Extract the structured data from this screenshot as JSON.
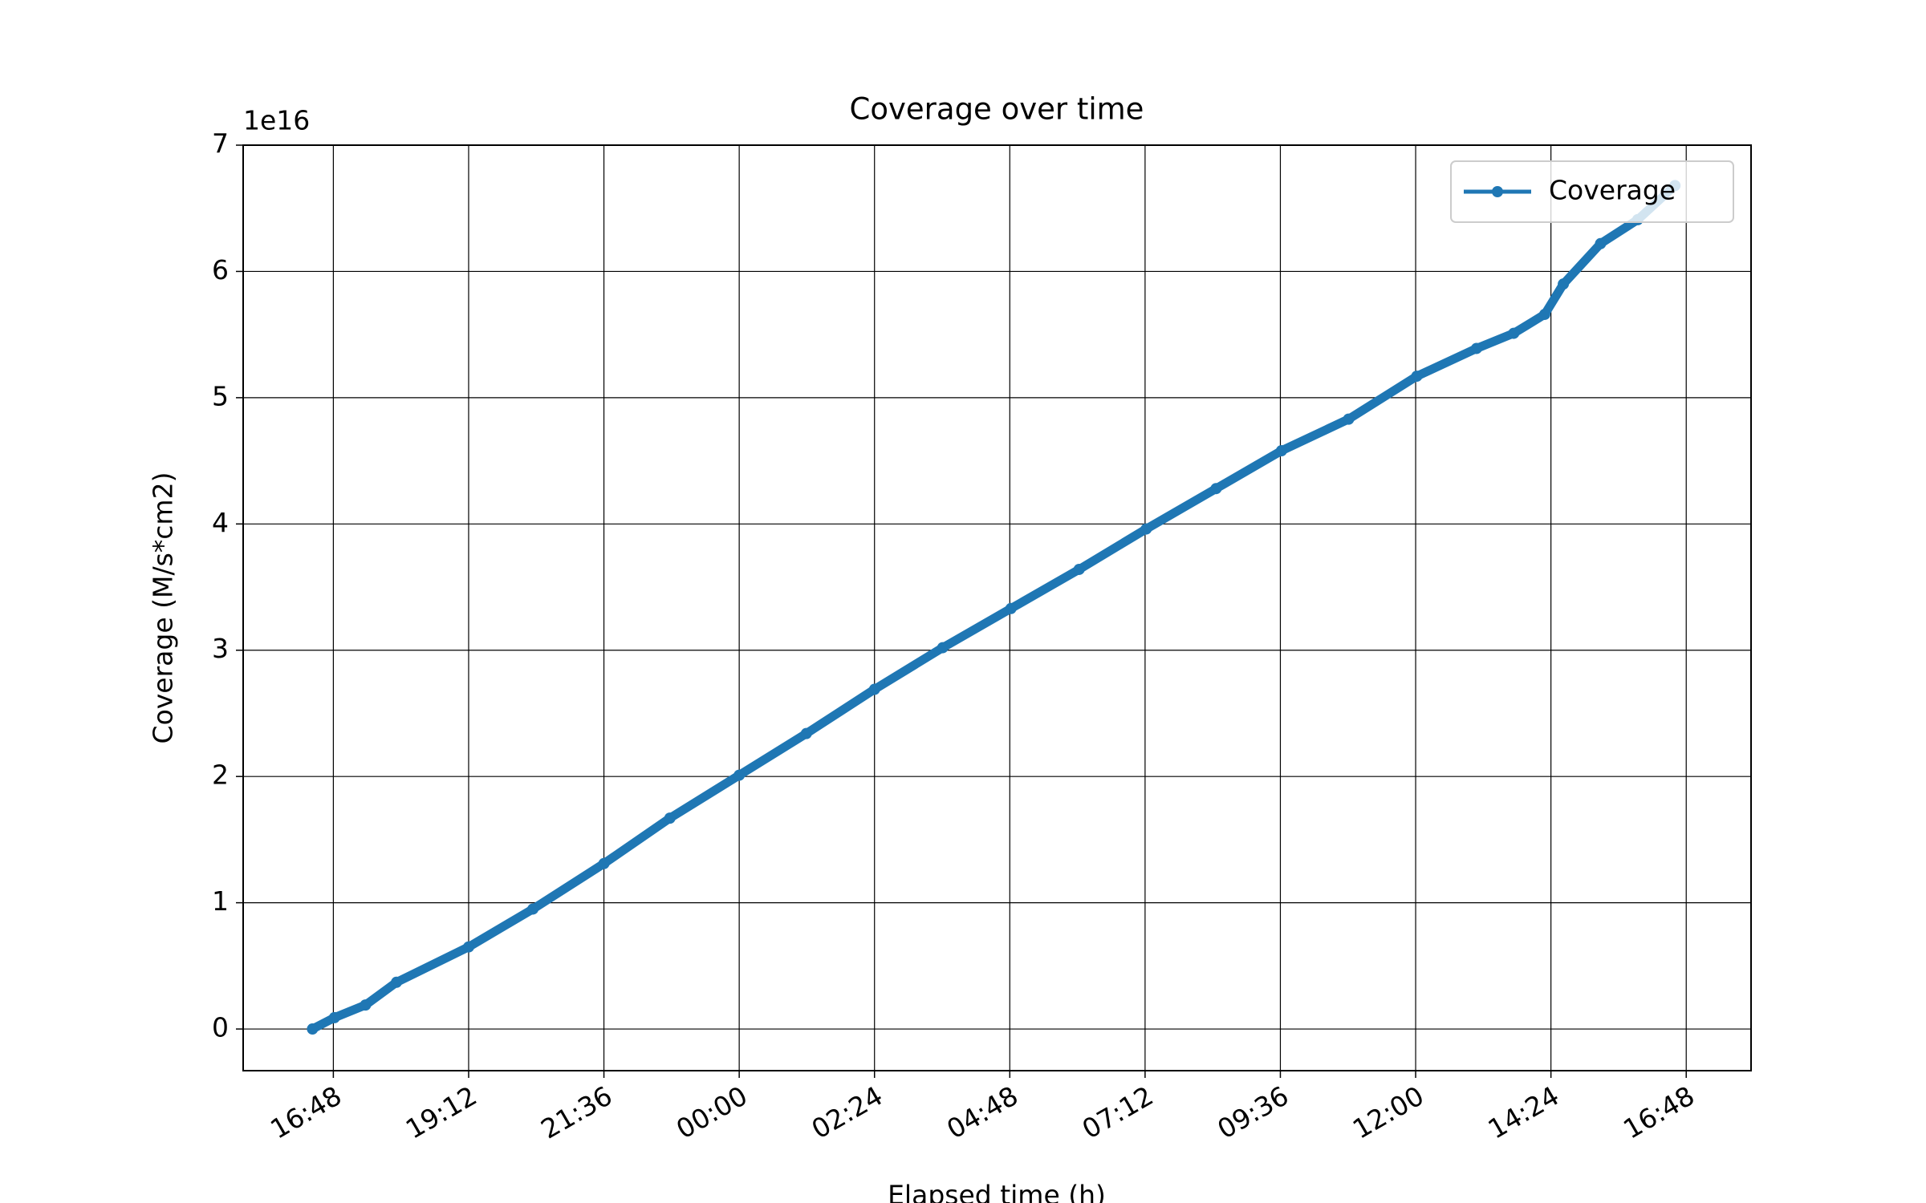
{
  "chart_data": {
    "type": "line",
    "title": "Coverage over time",
    "x_label": "Elapsed time (h)",
    "y_label": "Coverage (M/s*cm2)",
    "y_offset_label": "1e16",
    "x": [
      -0.37,
      0.02,
      0.57,
      1.12,
      2.4,
      3.54,
      4.8,
      5.97,
      7.2,
      8.39,
      9.6,
      10.81,
      12.02,
      13.23,
      14.42,
      15.66,
      16.82,
      18.01,
      19.22,
      20.28,
      20.94,
      21.49,
      21.82,
      22.48,
      23.14,
      23.8
    ],
    "series": [
      {
        "name": "Coverage",
        "color": "#1f77b4",
        "values": [
          0,
          0.09,
          0.19,
          0.37,
          0.65,
          0.95,
          1.31,
          1.67,
          2.01,
          2.34,
          2.69,
          3.02,
          3.33,
          3.64,
          3.96,
          4.28,
          4.58,
          4.83,
          5.17,
          5.39,
          5.51,
          5.66,
          5.9,
          6.22,
          6.41,
          6.68
        ]
      }
    ],
    "xlim": [
      -1.6,
      25.15
    ],
    "ylim": [
      -0.33,
      7
    ],
    "xticks": [
      {
        "value": 0,
        "label": "16:48"
      },
      {
        "value": 2.4,
        "label": "19:12"
      },
      {
        "value": 4.8,
        "label": "21:36"
      },
      {
        "value": 7.2,
        "label": "00:00"
      },
      {
        "value": 9.6,
        "label": "02:24"
      },
      {
        "value": 12,
        "label": "04:48"
      },
      {
        "value": 14.4,
        "label": "07:12"
      },
      {
        "value": 16.8,
        "label": "09:36"
      },
      {
        "value": 19.2,
        "label": "12:00"
      },
      {
        "value": 21.6,
        "label": "14:24"
      },
      {
        "value": 24,
        "label": "16:48"
      }
    ],
    "yticks": [
      0,
      1,
      2,
      3,
      4,
      5,
      6,
      7
    ],
    "grid": true,
    "legend": "upper right"
  }
}
